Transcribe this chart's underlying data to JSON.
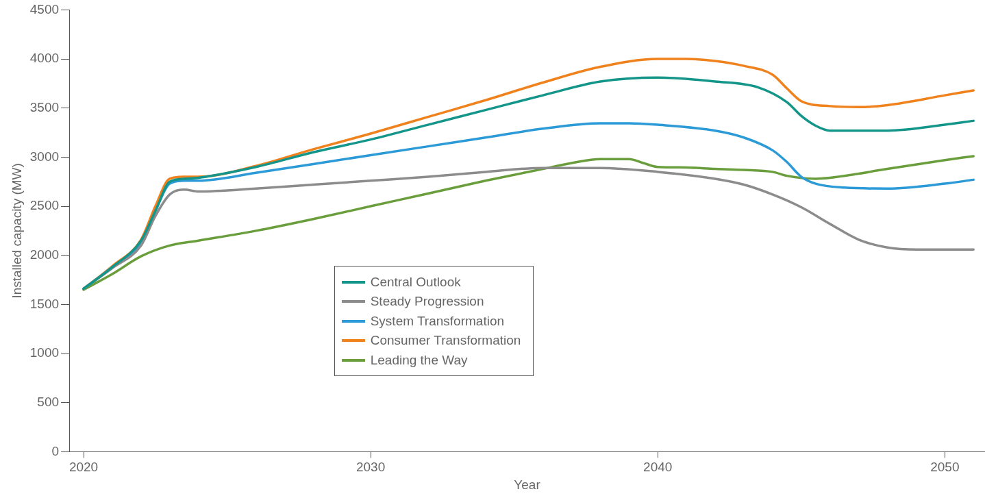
{
  "chart_data": {
    "type": "line",
    "xlabel": "Year",
    "ylabel": "Installed capacity (MW)",
    "xlim": [
      2019.5,
      2051.4
    ],
    "xticks": [
      2020,
      2030,
      2040,
      2050
    ],
    "ylim": [
      0,
      4500
    ],
    "yticks": [
      0,
      500,
      1000,
      1500,
      2000,
      2500,
      3000,
      3500,
      4000,
      4500
    ],
    "grid": false,
    "legend": "bottom",
    "marker": "none",
    "line_style": "solid",
    "series": [
      {
        "name": "Central Outlook",
        "color": "#14958a",
        "x": [
          2020,
          2021,
          2022,
          2022.5,
          2023,
          2023.5,
          2024,
          2026,
          2028,
          2030,
          2032,
          2034,
          2036,
          2038,
          2040,
          2042,
          2043.5,
          2044.5,
          2045,
          2045.5,
          2046,
          2048,
          2050,
          2051
        ],
        "values": [
          1660,
          1880,
          2150,
          2450,
          2750,
          2780,
          2790,
          2900,
          3050,
          3180,
          3330,
          3480,
          3630,
          3770,
          3810,
          3770,
          3710,
          3560,
          3420,
          3320,
          3270,
          3270,
          3330,
          3370
        ]
      },
      {
        "name": "Steady Progression",
        "color": "#8c8c8c",
        "x": [
          2020,
          2021,
          2022,
          2022.5,
          2023,
          2023.5,
          2024,
          2026,
          2028,
          2030,
          2032,
          2034,
          2036,
          2038,
          2040,
          2042,
          2043,
          2044,
          2045,
          2046,
          2047,
          2048,
          2049,
          2051
        ],
        "values": [
          1660,
          1870,
          2100,
          2400,
          2620,
          2670,
          2650,
          2680,
          2720,
          2760,
          2800,
          2850,
          2890,
          2890,
          2850,
          2780,
          2720,
          2620,
          2490,
          2320,
          2160,
          2080,
          2060,
          2060
        ]
      },
      {
        "name": "System Transformation",
        "color": "#2b9ad6",
        "x": [
          2020,
          2021,
          2022,
          2022.5,
          2023,
          2023.5,
          2024,
          2026,
          2028,
          2030,
          2032,
          2034,
          2036,
          2038,
          2039,
          2040,
          2042,
          2043,
          2044,
          2044.5,
          2045,
          2045.5,
          2046.5,
          2048,
          2050,
          2051
        ],
        "values": [
          1660,
          1880,
          2130,
          2450,
          2730,
          2760,
          2760,
          2840,
          2930,
          3020,
          3110,
          3200,
          3290,
          3345,
          3345,
          3330,
          3270,
          3200,
          3070,
          2950,
          2800,
          2730,
          2690,
          2680,
          2730,
          2770
        ]
      },
      {
        "name": "Consumer Transformation",
        "color": "#f0821e",
        "x": [
          2020,
          2021,
          2022,
          2022.5,
          2023,
          2023.5,
          2024,
          2026,
          2028,
          2030,
          2032,
          2034,
          2036,
          2038,
          2040,
          2041,
          2042,
          2043,
          2044,
          2044.5,
          2045,
          2046,
          2047,
          2048,
          2050,
          2051
        ],
        "values": [
          1660,
          1890,
          2160,
          2500,
          2780,
          2800,
          2800,
          2910,
          3080,
          3240,
          3410,
          3580,
          3760,
          3920,
          4000,
          4000,
          3980,
          3930,
          3840,
          3700,
          3570,
          3520,
          3510,
          3530,
          3630,
          3680
        ]
      },
      {
        "name": "Leading the Way",
        "color": "#6a9e3c",
        "x": [
          2020,
          2021,
          2022,
          2023,
          2024,
          2026,
          2028,
          2030,
          2032,
          2034,
          2036,
          2037,
          2038,
          2039,
          2039.5,
          2040,
          2041,
          2042,
          2043,
          2044,
          2044.5,
          2045.5,
          2046,
          2048,
          2050,
          2051
        ],
        "values": [
          1650,
          1810,
          1990,
          2100,
          2150,
          2250,
          2370,
          2500,
          2630,
          2760,
          2880,
          2940,
          2980,
          2980,
          2940,
          2900,
          2895,
          2880,
          2870,
          2850,
          2810,
          2780,
          2790,
          2880,
          2970,
          3010
        ]
      }
    ]
  }
}
